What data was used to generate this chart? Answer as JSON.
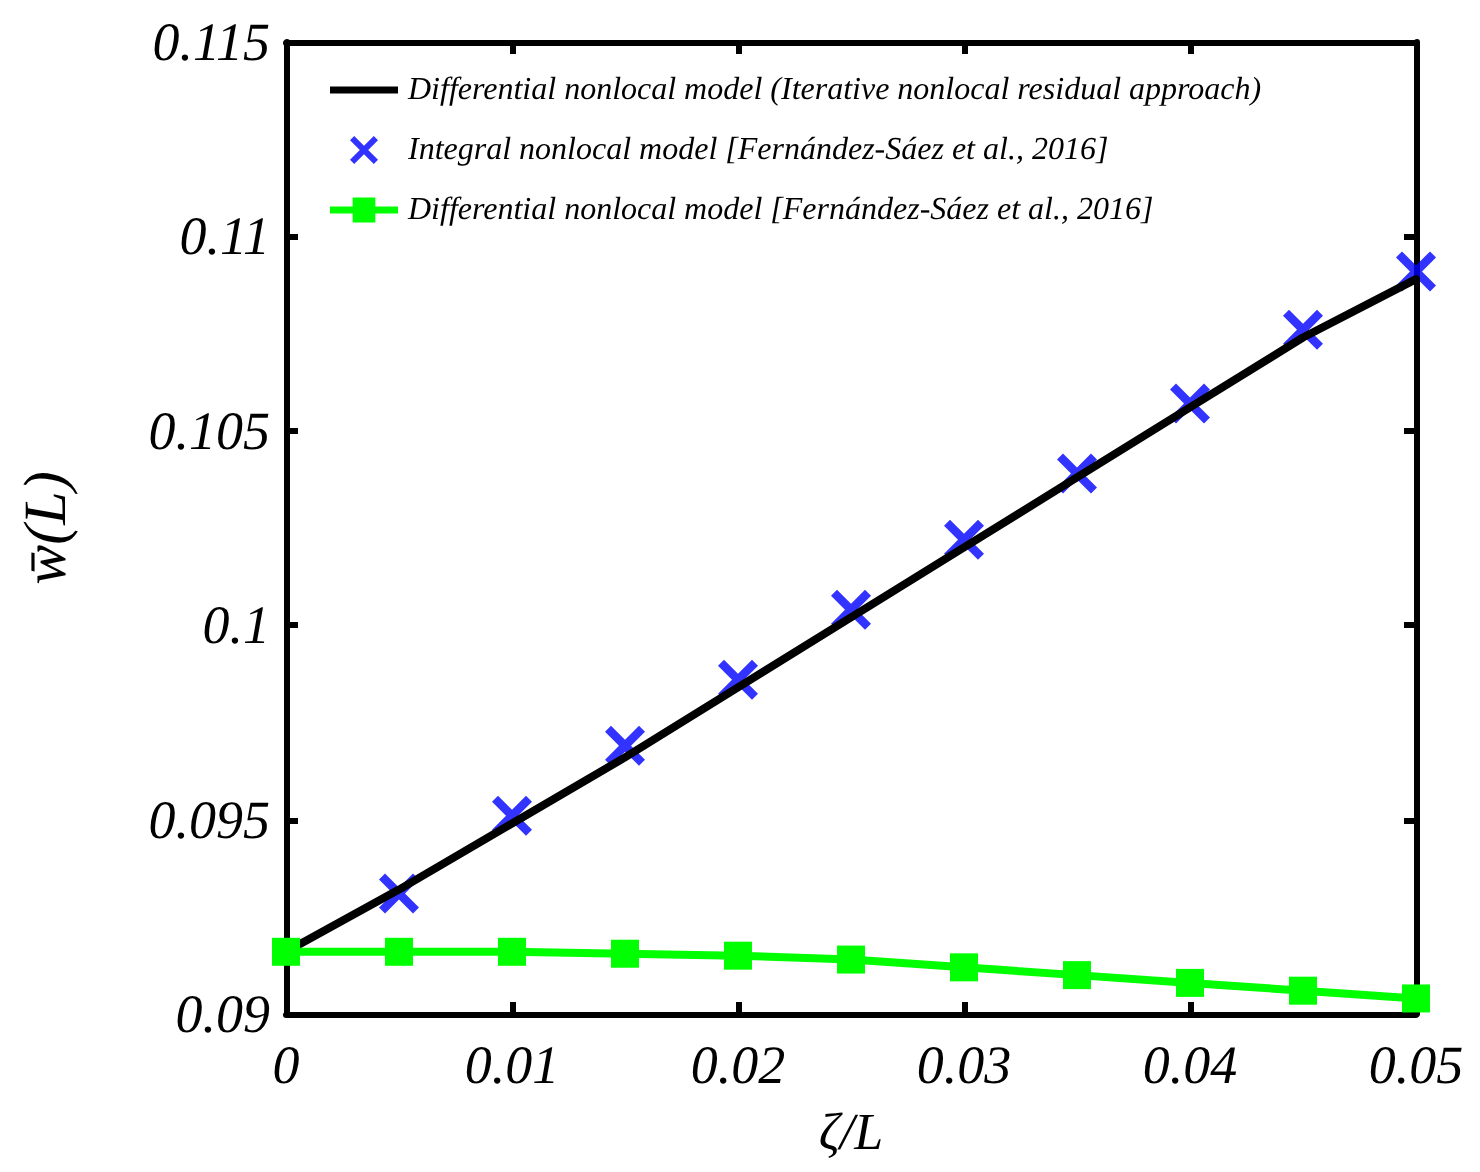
{
  "chart_data": {
    "type": "line",
    "xlabel": "ζ/L",
    "ylabel": "w̄(L)",
    "xlim": [
      0,
      0.05
    ],
    "ylim": [
      0.09,
      0.115
    ],
    "xticks": [
      0,
      0.01,
      0.02,
      0.03,
      0.04,
      0.05
    ],
    "yticks": [
      0.09,
      0.095,
      0.1,
      0.105,
      0.11,
      0.115
    ],
    "grid": false,
    "legend": "top left",
    "series": [
      {
        "name": "Differential nonlocal model (Iterative nonlocal residual approach)",
        "marker": "none",
        "color": "#000000",
        "x": [
          0,
          0.005,
          0.01,
          0.015,
          0.02,
          0.025,
          0.03,
          0.035,
          0.04,
          0.045,
          0.05
        ],
        "values": [
          0.0916,
          0.0932,
          0.0949,
          0.0966,
          0.0984,
          0.1002,
          0.102,
          0.1038,
          0.1056,
          0.1074,
          0.1089
        ]
      },
      {
        "name": "Integral nonlocal model [Fernández-Sáez et al., 2016]",
        "type": "scatter",
        "marker": "cross",
        "color": "#0000ff",
        "x": [
          0.005,
          0.01,
          0.015,
          0.02,
          0.025,
          0.03,
          0.035,
          0.04,
          0.045,
          0.05
        ],
        "values": [
          0.0931,
          0.0951,
          0.0969,
          0.0986,
          0.1004,
          0.1022,
          0.1039,
          0.1057,
          0.1076,
          0.1091
        ]
      },
      {
        "name": "Differential nonlocal model [Fernández-Sáez et al., 2016]",
        "marker": "square",
        "color": "#00ff00",
        "x": [
          0,
          0.005,
          0.01,
          0.015,
          0.02,
          0.025,
          0.03,
          0.035,
          0.04,
          0.045,
          0.05
        ],
        "values": [
          0.0916,
          0.0916,
          0.0916,
          0.09155,
          0.0915,
          0.0914,
          0.0912,
          0.091,
          0.0908,
          0.0906,
          0.0904
        ]
      }
    ]
  }
}
